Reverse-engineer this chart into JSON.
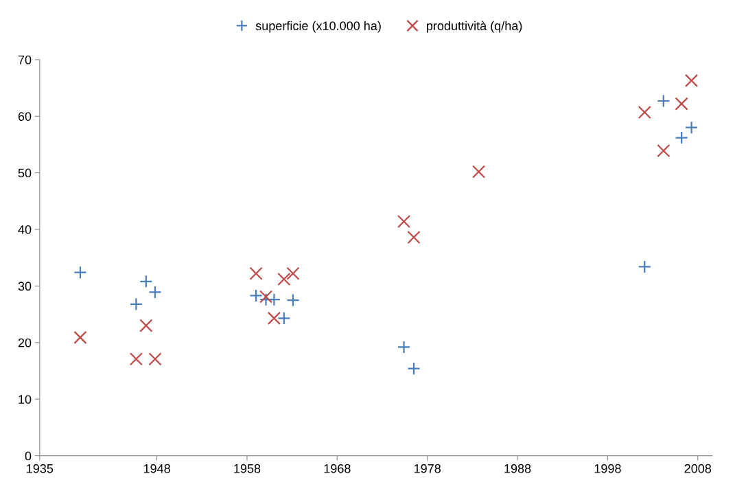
{
  "chart_data": {
    "type": "scatter",
    "legend": "top",
    "grid": false,
    "xlim": [
      1935,
      2009.6
    ],
    "xticks": [
      1935,
      1948,
      1958,
      1968,
      1978,
      1988,
      1998,
      2008
    ],
    "ylim": [
      0,
      70
    ],
    "yticks": [
      0,
      10,
      20,
      30,
      40,
      50,
      60,
      70
    ],
    "series": [
      {
        "name": "superficie (x10.000 ha)",
        "color": "#4a7ebb",
        "marker": "plus",
        "x": [
          1939.5,
          1945.7,
          1946.8,
          1947.8,
          1959.0,
          1960.1,
          1961.0,
          1962.1,
          1963.1,
          1975.4,
          1976.5,
          2002.1,
          2004.2,
          2006.2,
          2007.3
        ],
        "values": [
          32.4,
          26.8,
          30.8,
          28.9,
          28.3,
          27.6,
          27.6,
          24.3,
          27.5,
          19.2,
          15.4,
          33.4,
          62.7,
          56.2,
          58.0
        ]
      },
      {
        "name": "produttività (q/ha)",
        "color": "#be4b48",
        "marker": "cross",
        "x": [
          1939.5,
          1945.7,
          1946.8,
          1947.8,
          1959.0,
          1960.1,
          1961.0,
          1962.1,
          1963.1,
          1975.4,
          1976.5,
          1983.7,
          2002.1,
          2004.2,
          2006.2,
          2007.3
        ],
        "values": [
          20.9,
          17.1,
          23.0,
          17.1,
          32.2,
          28.1,
          24.3,
          31.2,
          32.2,
          41.4,
          38.6,
          50.2,
          60.7,
          53.9,
          62.2,
          66.3
        ]
      }
    ]
  }
}
